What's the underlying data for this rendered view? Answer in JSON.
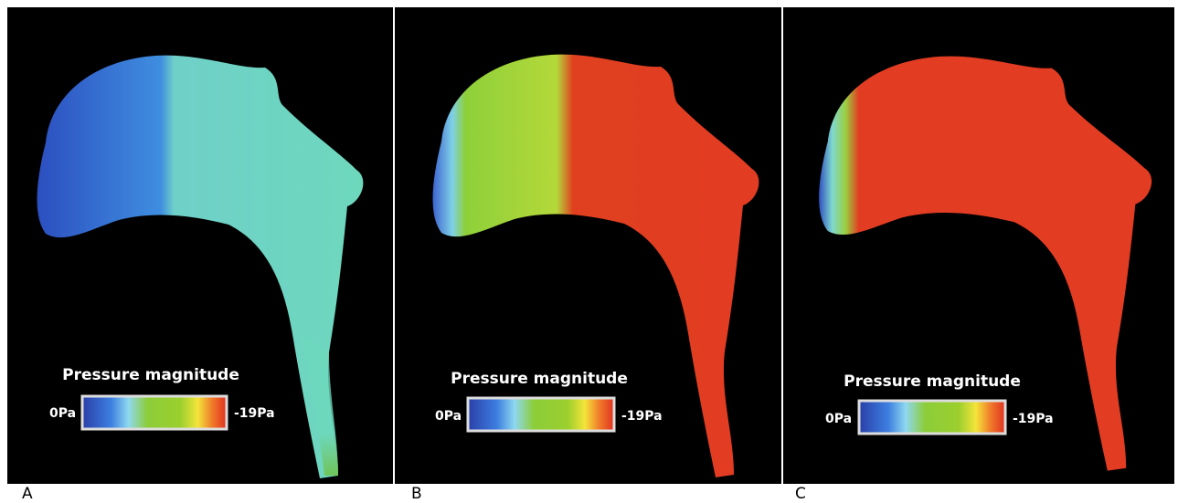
{
  "panels": [
    {
      "label": "A",
      "colorbar": {
        "title": "Pressure magnitude",
        "min_label": "0Pa",
        "max_label": "-19Pa"
      }
    },
    {
      "label": "B",
      "colorbar": {
        "title": "Pressure magnitude",
        "min_label": "0Pa",
        "max_label": "-19Pa"
      }
    },
    {
      "label": "C",
      "colorbar": {
        "title": "Pressure magnitude",
        "min_label": "0Pa",
        "max_label": "-19Pa"
      }
    }
  ]
}
